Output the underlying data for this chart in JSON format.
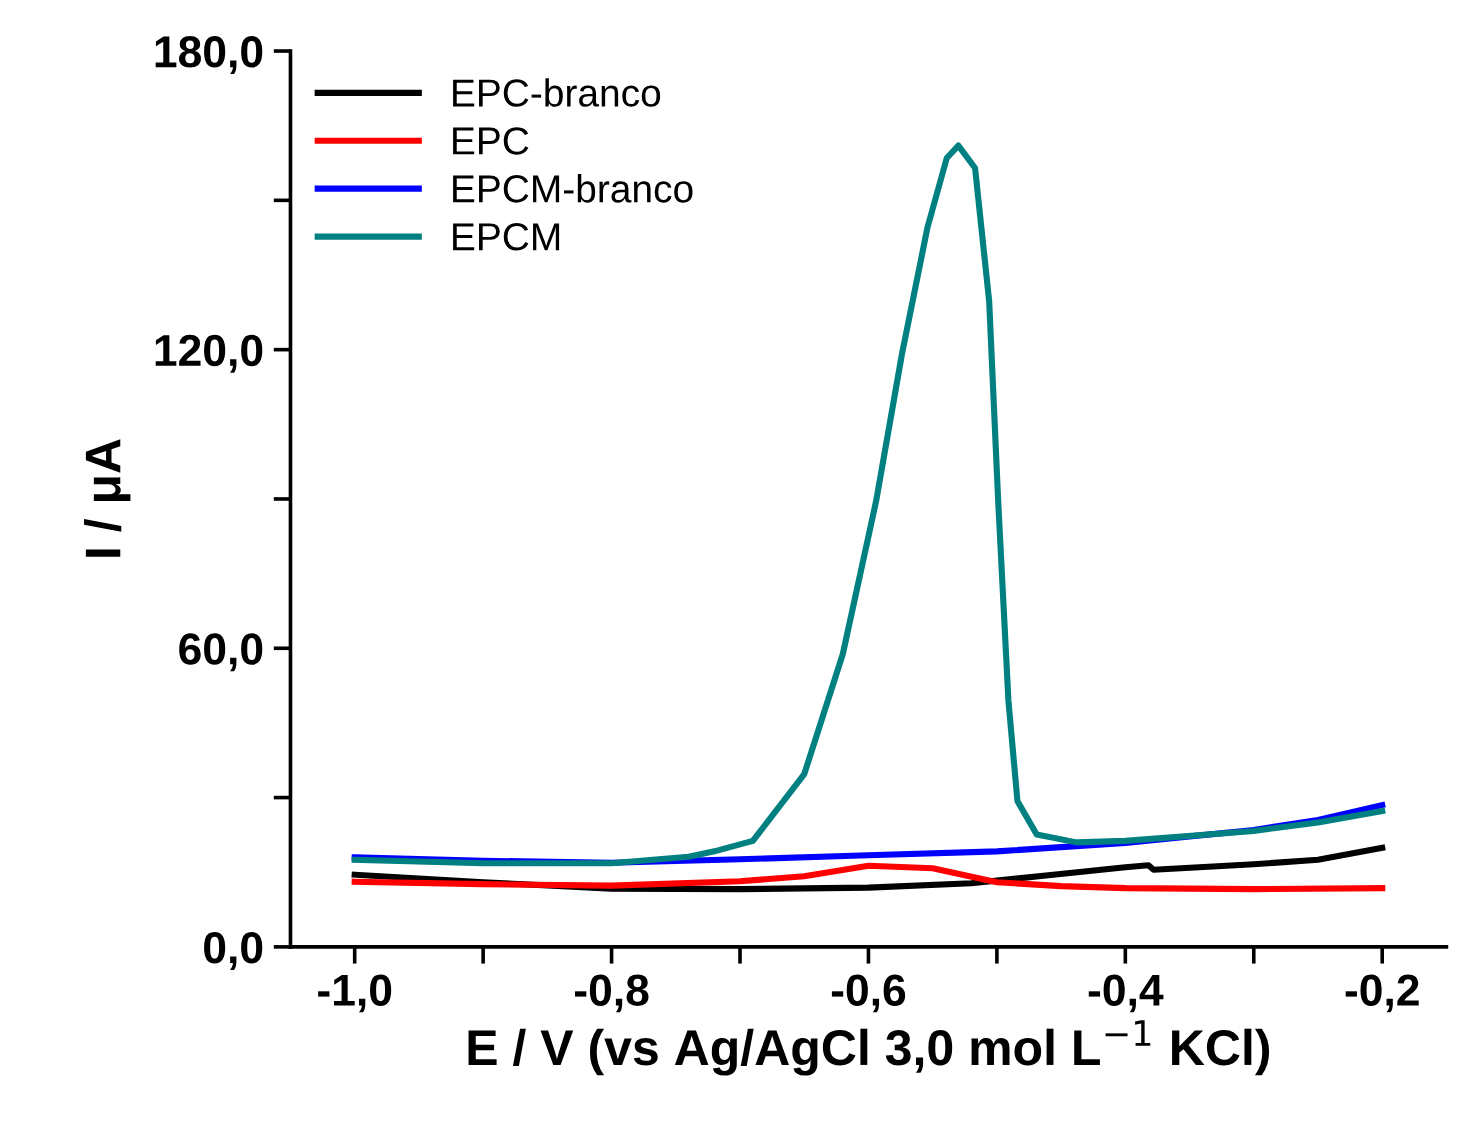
{
  "chart_data": {
    "type": "line",
    "xlabel": "E / V (vs Ag/AgCl 3,0 mol L$^{−1}$ KCl)",
    "ylabel": "I / μA",
    "xlim": [
      -1.05,
      -0.15
    ],
    "ylim": [
      0,
      180
    ],
    "xticks": [
      {
        "value": -1.0,
        "label": "-1,0"
      },
      {
        "value": -0.9,
        "label": null
      },
      {
        "value": -0.8,
        "label": "-0,8"
      },
      {
        "value": -0.7,
        "label": null
      },
      {
        "value": -0.6,
        "label": "-0,6"
      },
      {
        "value": -0.5,
        "label": null
      },
      {
        "value": -0.4,
        "label": "-0,4"
      },
      {
        "value": -0.3,
        "label": null
      },
      {
        "value": -0.2,
        "label": "-0,2"
      }
    ],
    "yticks": [
      {
        "value": 0,
        "label": "0,0"
      },
      {
        "value": 30,
        "label": null
      },
      {
        "value": 60,
        "label": "60,0"
      },
      {
        "value": 90,
        "label": null
      },
      {
        "value": 120,
        "label": "120,0"
      },
      {
        "value": 150,
        "label": null
      },
      {
        "value": 180,
        "label": "180,0"
      }
    ],
    "legend": "top left",
    "grid": false,
    "marker": "none",
    "line_style": "solid",
    "series": [
      {
        "name": "EPC-branco",
        "color": "#000000",
        "x": [
          -1.0,
          -0.9,
          -0.8,
          -0.7,
          -0.6,
          -0.52,
          -0.46,
          -0.4,
          -0.382,
          -0.378,
          -0.3,
          -0.25,
          -0.2
        ],
        "values": [
          14.5,
          13.0,
          11.7,
          11.6,
          11.9,
          12.8,
          14.4,
          16.0,
          16.4,
          15.5,
          16.6,
          17.5,
          19.9
        ]
      },
      {
        "name": "EPC",
        "color": "#ff0000",
        "x": [
          -1.0,
          -0.9,
          -0.8,
          -0.7,
          -0.65,
          -0.6,
          -0.55,
          -0.5,
          -0.45,
          -0.4,
          -0.3,
          -0.2
        ],
        "values": [
          13.1,
          12.6,
          12.3,
          13.2,
          14.2,
          16.3,
          15.8,
          13.0,
          12.2,
          11.8,
          11.6,
          11.8
        ]
      },
      {
        "name": "EPCM-branco",
        "color": "#0000ff",
        "x": [
          -1.0,
          -0.9,
          -0.8,
          -0.7,
          -0.6,
          -0.5,
          -0.4,
          -0.3,
          -0.25,
          -0.2
        ],
        "values": [
          18.0,
          17.3,
          16.9,
          17.6,
          18.4,
          19.2,
          20.9,
          23.5,
          25.5,
          28.5
        ]
      },
      {
        "name": "EPCM",
        "color": "#008080",
        "x": [
          -1.0,
          -0.9,
          -0.8,
          -0.74,
          -0.72,
          -0.69,
          -0.65,
          -0.62,
          -0.594,
          -0.574,
          -0.554,
          -0.539,
          -0.53,
          -0.517,
          -0.506,
          -0.499,
          -0.491,
          -0.484,
          -0.469,
          -0.438,
          -0.4,
          -0.3,
          -0.25,
          -0.2
        ],
        "values": [
          17.5,
          16.8,
          16.8,
          18.1,
          19.2,
          21.3,
          34.7,
          58.8,
          89.6,
          119,
          144.6,
          158.5,
          161,
          156.5,
          129.7,
          89.6,
          49.4,
          29.3,
          22.6,
          21.0,
          21.3,
          23.3,
          25.0,
          27.3
        ]
      }
    ]
  }
}
